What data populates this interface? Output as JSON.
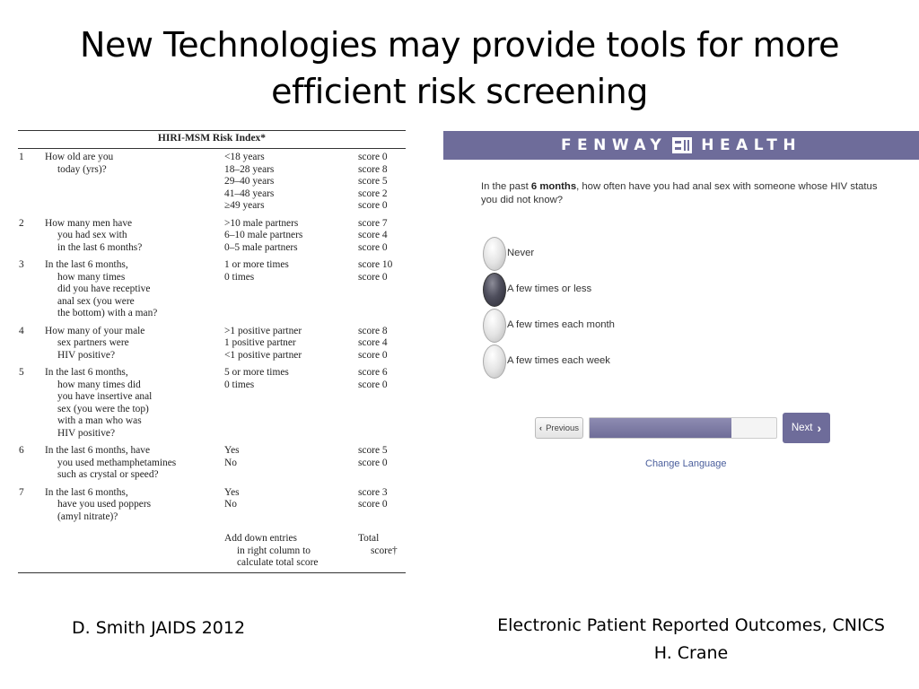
{
  "slide": {
    "title_line1": "New Technologies may provide tools for more",
    "title_line2": "efficient risk screening"
  },
  "hiri": {
    "title": "HIRI-MSM Risk Index*",
    "rows": [
      {
        "num": "1",
        "question": [
          "How old are you",
          "today (yrs)?"
        ],
        "options": [
          {
            "label": "<18 years",
            "score": "score 0"
          },
          {
            "label": "18–28 years",
            "score": "score 8"
          },
          {
            "label": "29–40 years",
            "score": "score 5"
          },
          {
            "label": "41–48 years",
            "score": "score 2"
          },
          {
            "label": "≥49 years",
            "score": "score 0"
          }
        ]
      },
      {
        "num": "2",
        "question": [
          "How many men have",
          "you had sex with",
          "in the last 6 months?"
        ],
        "options": [
          {
            "label": ">10 male partners",
            "score": "score 7"
          },
          {
            "label": "6–10 male partners",
            "score": "score 4"
          },
          {
            "label": "0–5 male partners",
            "score": "score 0"
          }
        ]
      },
      {
        "num": "3",
        "question": [
          "In the last 6 months,",
          "how many times",
          "did you have receptive",
          "anal sex (you were",
          "the bottom) with a man?"
        ],
        "options": [
          {
            "label": "1 or more times",
            "score": "score 10"
          },
          {
            "label": "0 times",
            "score": "score 0"
          }
        ]
      },
      {
        "num": "4",
        "question": [
          "How many of your male",
          "sex partners were",
          "HIV positive?"
        ],
        "options": [
          {
            "label": ">1 positive partner",
            "score": "score 8"
          },
          {
            "label": "1 positive partner",
            "score": "score 4"
          },
          {
            "label": "<1 positive partner",
            "score": "score 0"
          }
        ]
      },
      {
        "num": "5",
        "question": [
          "In the last 6 months,",
          "how many times did",
          "you have insertive anal",
          "sex (you were the top)",
          "with a man who was",
          "HIV positive?"
        ],
        "options": [
          {
            "label": "5 or more times",
            "score": "score 6"
          },
          {
            "label": "0 times",
            "score": "score 0"
          }
        ]
      },
      {
        "num": "6",
        "question": [
          "In the last 6 months, have",
          "you used methamphetamines",
          "such as crystal or speed?"
        ],
        "options": [
          {
            "label": "Yes",
            "score": "score 5"
          },
          {
            "label": "No",
            "score": "score 0"
          }
        ]
      },
      {
        "num": "7",
        "question": [
          "In the last 6 months,",
          "have you used poppers",
          "(amyl nitrate)?"
        ],
        "options": [
          {
            "label": "Yes",
            "score": "score 3"
          },
          {
            "label": "No",
            "score": "score 0"
          }
        ]
      }
    ],
    "footer": {
      "instruction": [
        "Add down entries",
        "in right column to",
        "calculate total score"
      ],
      "total": [
        "Total",
        "score†"
      ]
    }
  },
  "fenway": {
    "brand_left": "FENWAY",
    "brand_right": "HEALTH",
    "question_pre": "In the past ",
    "question_bold": "6 months",
    "question_post": ", how often have you had anal sex with someone whose HIV status you did not know?",
    "options": [
      {
        "label": "Never",
        "selected": false
      },
      {
        "label": "A few times or less",
        "selected": true
      },
      {
        "label": "A few times each month",
        "selected": false
      },
      {
        "label": "A few times each week",
        "selected": false
      }
    ],
    "previous_label": "Previous",
    "next_label": "Next",
    "progress_fraction": 0.76,
    "change_language": "Change Language",
    "accent_color": "#6e6c9a"
  },
  "citations": {
    "left": "D. Smith JAIDS 2012",
    "right_line1": "Electronic Patient Reported Outcomes, CNICS",
    "right_line2": "H. Crane"
  }
}
